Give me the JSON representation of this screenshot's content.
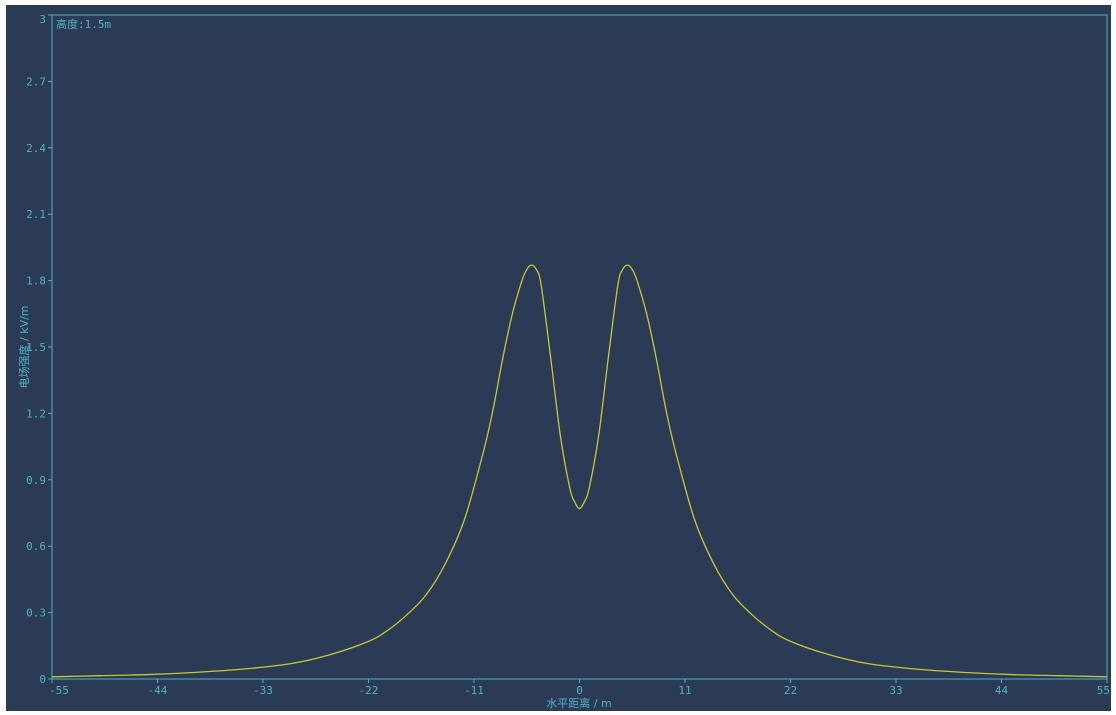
{
  "colors": {
    "background": "#2b3a55",
    "axis": "#4fb3c4",
    "text": "#4fb3c4",
    "curve": "#c8c832"
  },
  "chart_data": {
    "type": "line",
    "title": "",
    "annotation": "高度:1.5m",
    "xlabel": "水平距离 / m",
    "ylabel": "电场强度 / kV/m",
    "xlim": [
      -55,
      55
    ],
    "ylim": [
      0,
      3
    ],
    "xticks": [
      -55,
      -44,
      -33,
      -22,
      -11,
      0,
      11,
      22,
      33,
      44,
      55
    ],
    "yticks": [
      0,
      0.3,
      0.6,
      0.9,
      1.2,
      1.5,
      1.8,
      2.1,
      2.4,
      2.7,
      3
    ],
    "xtick_labels": [
      "-55",
      "-44",
      "-33",
      "-22",
      "-11",
      "0",
      "11",
      "22",
      "33",
      "44",
      "55"
    ],
    "ytick_labels": [
      "0",
      "0.3",
      "0.6",
      "0.9",
      "1.2",
      "1.5",
      "1.8",
      "2.1",
      "2.4",
      "2.7",
      "3"
    ],
    "grid": false,
    "series": [
      {
        "x": [
          -55,
          -50,
          -45,
          -40,
          -35,
          -30,
          -26,
          -22,
          -20,
          -18,
          -16,
          -14,
          -12,
          -10,
          -9,
          -8,
          -7,
          -6,
          -5.5,
          -5,
          -4.5,
          -4,
          -3,
          -2,
          -1,
          -0.5,
          0,
          0.5,
          1,
          2,
          3,
          4,
          4.5,
          5,
          5.5,
          6,
          7,
          8,
          9,
          10,
          12,
          14,
          16,
          18,
          20,
          22,
          26,
          30,
          35,
          40,
          45,
          50,
          55
        ],
        "y": [
          0.01,
          0.015,
          0.02,
          0.03,
          0.045,
          0.07,
          0.11,
          0.17,
          0.22,
          0.29,
          0.38,
          0.52,
          0.72,
          1.03,
          1.22,
          1.45,
          1.65,
          1.8,
          1.85,
          1.87,
          1.85,
          1.78,
          1.45,
          1.1,
          0.86,
          0.8,
          0.77,
          0.8,
          0.86,
          1.1,
          1.45,
          1.78,
          1.85,
          1.87,
          1.85,
          1.8,
          1.65,
          1.45,
          1.22,
          1.03,
          0.72,
          0.52,
          0.38,
          0.29,
          0.22,
          0.17,
          0.11,
          0.07,
          0.045,
          0.03,
          0.02,
          0.015,
          0.01
        ]
      }
    ]
  }
}
